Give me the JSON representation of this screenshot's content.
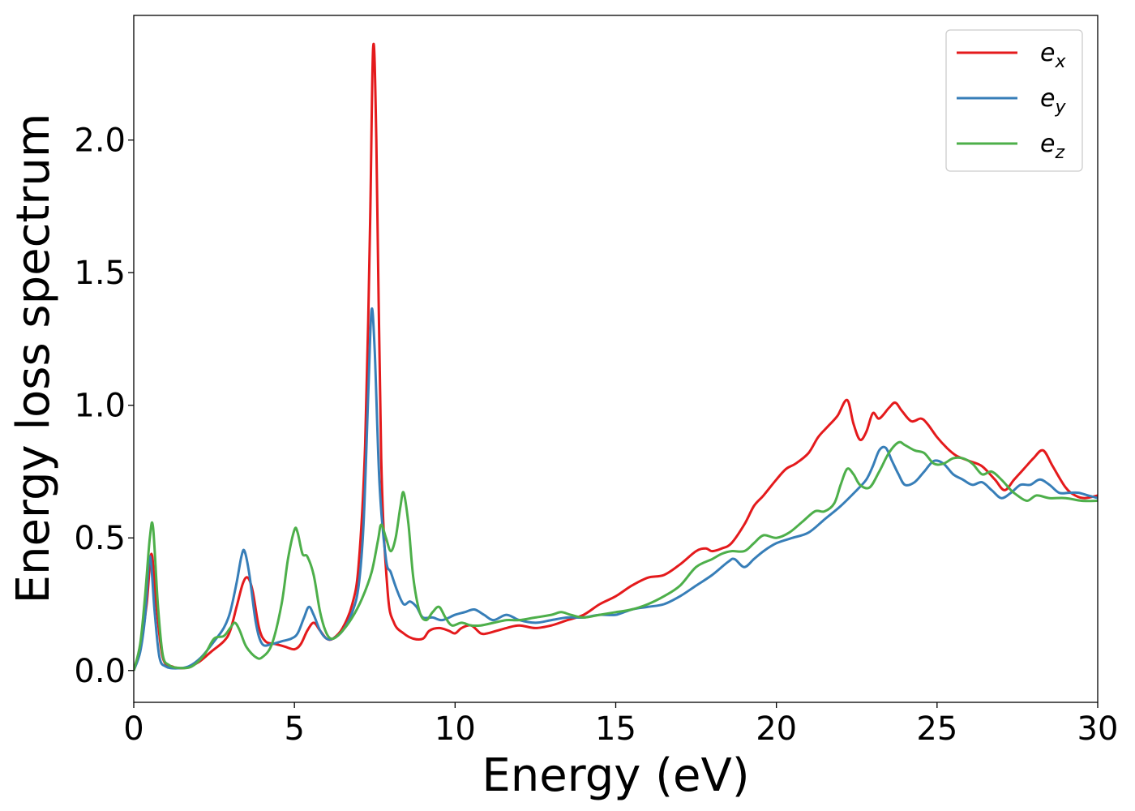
{
  "chart_data": {
    "type": "line",
    "xlabel": "Energy (eV)",
    "ylabel": "Energy loss spectrum",
    "xlim": [
      0,
      30
    ],
    "ylim": [
      -0.12,
      2.47
    ],
    "xticks": [
      0,
      5,
      10,
      15,
      20,
      25,
      30
    ],
    "xtick_labels": [
      "0",
      "5",
      "10",
      "15",
      "20",
      "25",
      "30"
    ],
    "yticks": [
      0.0,
      0.5,
      1.0,
      1.5,
      2.0
    ],
    "ytick_labels": [
      "0.0",
      "0.5",
      "1.0",
      "1.5",
      "2.0"
    ],
    "grid": false,
    "legend_position": "top-right",
    "series": [
      {
        "name": "e_x",
        "label_base": "e",
        "label_sub": "x",
        "color": "#e41a1c",
        "x": [
          0,
          0.2,
          0.4,
          0.55,
          0.7,
          0.9,
          1.2,
          1.6,
          2.0,
          2.4,
          2.8,
          3.0,
          3.2,
          3.4,
          3.55,
          3.7,
          3.9,
          4.1,
          4.4,
          4.7,
          5.0,
          5.2,
          5.4,
          5.6,
          5.8,
          6.0,
          6.2,
          6.5,
          6.8,
          7.0,
          7.2,
          7.35,
          7.45,
          7.55,
          7.7,
          7.9,
          8.1,
          8.4,
          8.7,
          9.0,
          9.2,
          9.5,
          9.8,
          10.0,
          10.2,
          10.5,
          10.8,
          11.0,
          11.3,
          11.6,
          12.0,
          12.5,
          13.0,
          13.5,
          14.0,
          14.5,
          15.0,
          15.5,
          16.0,
          16.5,
          17.0,
          17.5,
          17.8,
          18.0,
          18.3,
          18.6,
          19.0,
          19.3,
          19.6,
          20.0,
          20.3,
          20.6,
          21.0,
          21.3,
          21.6,
          21.9,
          22.2,
          22.4,
          22.6,
          22.8,
          23.0,
          23.2,
          23.5,
          23.7,
          23.9,
          24.2,
          24.5,
          24.7,
          25.0,
          25.3,
          25.6,
          26.0,
          26.4,
          26.8,
          27.1,
          27.4,
          27.7,
          28.0,
          28.3,
          28.6,
          29.0,
          29.3,
          29.6,
          30.0
        ],
        "y": [
          0.0,
          0.08,
          0.25,
          0.44,
          0.25,
          0.05,
          0.015,
          0.01,
          0.03,
          0.07,
          0.11,
          0.15,
          0.24,
          0.33,
          0.35,
          0.3,
          0.16,
          0.11,
          0.1,
          0.09,
          0.08,
          0.1,
          0.15,
          0.18,
          0.15,
          0.12,
          0.12,
          0.16,
          0.25,
          0.4,
          0.85,
          1.65,
          2.35,
          2.0,
          0.8,
          0.3,
          0.18,
          0.14,
          0.12,
          0.12,
          0.15,
          0.16,
          0.15,
          0.14,
          0.16,
          0.17,
          0.14,
          0.14,
          0.15,
          0.16,
          0.17,
          0.16,
          0.17,
          0.19,
          0.21,
          0.25,
          0.28,
          0.32,
          0.35,
          0.36,
          0.4,
          0.45,
          0.46,
          0.45,
          0.46,
          0.48,
          0.55,
          0.62,
          0.66,
          0.72,
          0.76,
          0.78,
          0.82,
          0.88,
          0.92,
          0.96,
          1.02,
          0.93,
          0.87,
          0.9,
          0.97,
          0.95,
          0.99,
          1.01,
          0.98,
          0.94,
          0.95,
          0.93,
          0.88,
          0.84,
          0.81,
          0.79,
          0.77,
          0.72,
          0.68,
          0.72,
          0.76,
          0.8,
          0.83,
          0.77,
          0.69,
          0.66,
          0.65,
          0.66
        ]
      },
      {
        "name": "e_y",
        "label_base": "e",
        "label_sub": "y",
        "color": "#377eb8",
        "x": [
          0,
          0.2,
          0.35,
          0.5,
          0.65,
          0.8,
          1.0,
          1.3,
          1.7,
          2.1,
          2.5,
          2.8,
          3.0,
          3.2,
          3.35,
          3.45,
          3.6,
          3.8,
          4.0,
          4.3,
          4.6,
          4.9,
          5.1,
          5.3,
          5.45,
          5.6,
          5.8,
          6.0,
          6.2,
          6.5,
          6.8,
          7.0,
          7.15,
          7.3,
          7.4,
          7.5,
          7.65,
          7.85,
          8.0,
          8.2,
          8.4,
          8.6,
          8.8,
          9.0,
          9.3,
          9.6,
          10.0,
          10.3,
          10.6,
          10.9,
          11.2,
          11.6,
          12.0,
          12.5,
          13.0,
          13.5,
          14.0,
          14.5,
          15.0,
          15.5,
          16.0,
          16.5,
          17.0,
          17.5,
          18.0,
          18.5,
          18.7,
          19.0,
          19.3,
          19.6,
          20.0,
          20.5,
          21.0,
          21.5,
          22.0,
          22.5,
          22.8,
          23.0,
          23.2,
          23.4,
          23.6,
          23.8,
          24.0,
          24.3,
          24.6,
          24.9,
          25.2,
          25.5,
          25.8,
          26.1,
          26.4,
          26.7,
          27.0,
          27.3,
          27.6,
          27.9,
          28.2,
          28.5,
          28.8,
          29.1,
          29.4,
          29.7,
          30.0
        ],
        "y": [
          0.0,
          0.07,
          0.2,
          0.43,
          0.22,
          0.05,
          0.015,
          0.008,
          0.015,
          0.05,
          0.11,
          0.16,
          0.22,
          0.33,
          0.43,
          0.45,
          0.36,
          0.18,
          0.1,
          0.1,
          0.11,
          0.12,
          0.14,
          0.2,
          0.24,
          0.21,
          0.15,
          0.12,
          0.12,
          0.15,
          0.22,
          0.32,
          0.55,
          1.05,
          1.36,
          1.2,
          0.7,
          0.42,
          0.37,
          0.3,
          0.25,
          0.26,
          0.24,
          0.2,
          0.2,
          0.19,
          0.21,
          0.22,
          0.23,
          0.21,
          0.19,
          0.21,
          0.19,
          0.18,
          0.19,
          0.2,
          0.2,
          0.21,
          0.21,
          0.23,
          0.24,
          0.25,
          0.28,
          0.32,
          0.36,
          0.41,
          0.42,
          0.39,
          0.42,
          0.45,
          0.48,
          0.5,
          0.52,
          0.57,
          0.62,
          0.68,
          0.72,
          0.77,
          0.83,
          0.84,
          0.79,
          0.74,
          0.7,
          0.71,
          0.75,
          0.79,
          0.78,
          0.74,
          0.72,
          0.7,
          0.71,
          0.68,
          0.65,
          0.67,
          0.7,
          0.7,
          0.72,
          0.7,
          0.67,
          0.67,
          0.67,
          0.66,
          0.65
        ]
      },
      {
        "name": "e_z",
        "label_base": "e",
        "label_sub": "z",
        "color": "#4daf4a",
        "x": [
          0,
          0.2,
          0.35,
          0.5,
          0.6,
          0.75,
          0.9,
          1.1,
          1.4,
          1.8,
          2.2,
          2.5,
          2.8,
          3.0,
          3.15,
          3.3,
          3.5,
          3.8,
          4.0,
          4.3,
          4.6,
          4.8,
          5.0,
          5.1,
          5.25,
          5.4,
          5.6,
          5.8,
          6.0,
          6.2,
          6.5,
          6.8,
          7.1,
          7.4,
          7.6,
          7.7,
          7.85,
          8.0,
          8.15,
          8.3,
          8.4,
          8.55,
          8.7,
          8.9,
          9.1,
          9.3,
          9.5,
          9.7,
          9.9,
          10.2,
          10.5,
          10.8,
          11.2,
          11.6,
          12.0,
          12.5,
          13.0,
          13.3,
          13.6,
          14.0,
          14.5,
          15.0,
          15.5,
          16.0,
          16.5,
          17.0,
          17.5,
          18.0,
          18.3,
          18.6,
          19.0,
          19.3,
          19.6,
          20.0,
          20.4,
          20.8,
          21.2,
          21.5,
          21.8,
          22.0,
          22.2,
          22.4,
          22.6,
          22.9,
          23.2,
          23.5,
          23.8,
          24.0,
          24.3,
          24.6,
          24.9,
          25.2,
          25.5,
          25.8,
          26.1,
          26.4,
          26.7,
          27.0,
          27.3,
          27.5,
          27.8,
          28.1,
          28.5,
          29.0,
          29.5,
          30.0
        ],
        "y": [
          0.0,
          0.1,
          0.28,
          0.5,
          0.54,
          0.25,
          0.06,
          0.02,
          0.01,
          0.015,
          0.06,
          0.12,
          0.13,
          0.16,
          0.18,
          0.15,
          0.09,
          0.05,
          0.05,
          0.1,
          0.25,
          0.42,
          0.53,
          0.52,
          0.44,
          0.43,
          0.36,
          0.22,
          0.14,
          0.12,
          0.15,
          0.2,
          0.27,
          0.37,
          0.49,
          0.55,
          0.5,
          0.45,
          0.5,
          0.62,
          0.67,
          0.55,
          0.35,
          0.22,
          0.19,
          0.22,
          0.24,
          0.2,
          0.17,
          0.18,
          0.17,
          0.17,
          0.18,
          0.19,
          0.19,
          0.2,
          0.21,
          0.22,
          0.21,
          0.2,
          0.21,
          0.22,
          0.23,
          0.25,
          0.28,
          0.32,
          0.39,
          0.42,
          0.44,
          0.45,
          0.45,
          0.48,
          0.51,
          0.5,
          0.52,
          0.56,
          0.6,
          0.6,
          0.63,
          0.7,
          0.76,
          0.74,
          0.7,
          0.69,
          0.75,
          0.82,
          0.86,
          0.85,
          0.83,
          0.82,
          0.78,
          0.78,
          0.8,
          0.8,
          0.78,
          0.74,
          0.75,
          0.72,
          0.68,
          0.66,
          0.64,
          0.66,
          0.65,
          0.65,
          0.64,
          0.64
        ]
      }
    ]
  }
}
